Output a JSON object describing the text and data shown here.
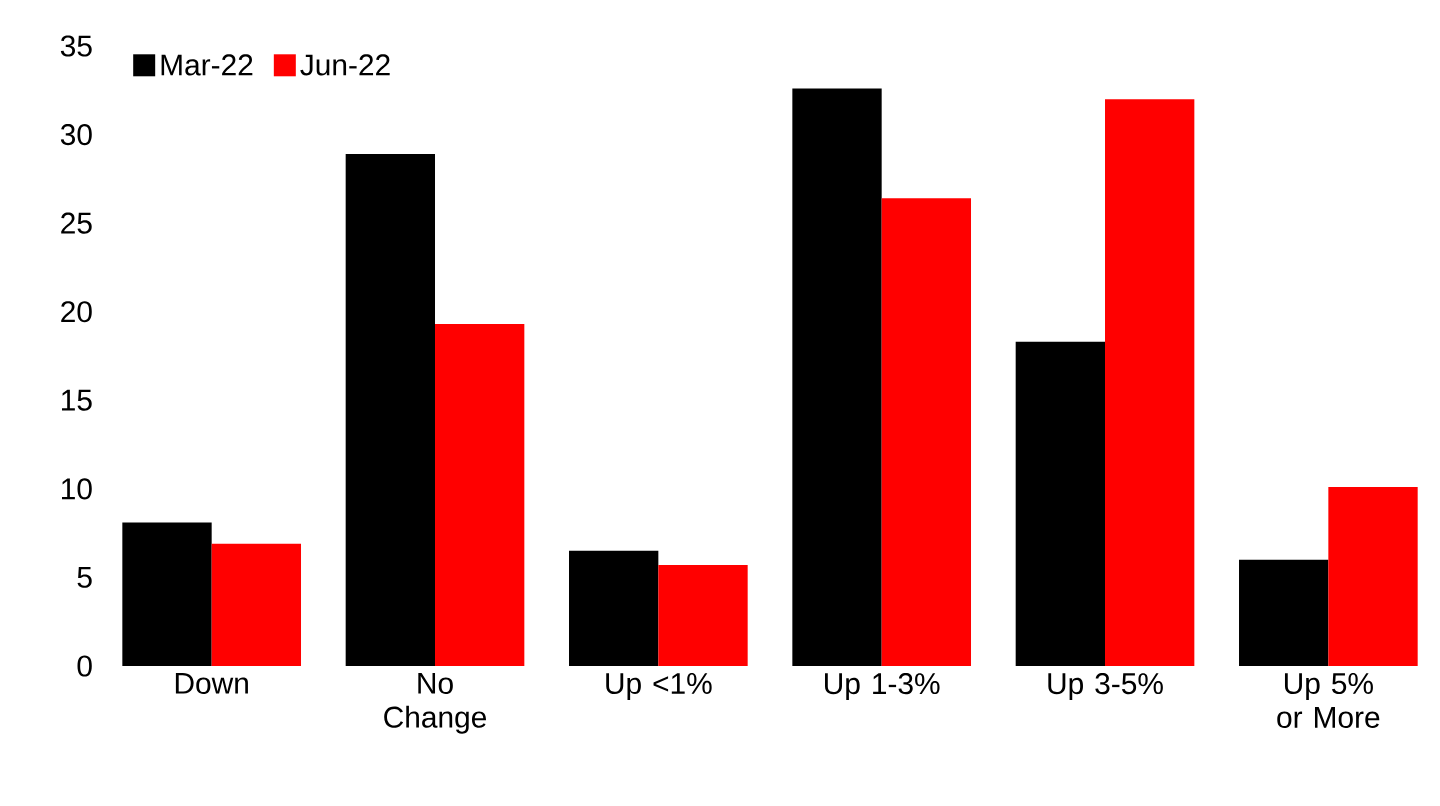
{
  "chart_data": {
    "type": "bar",
    "categories": [
      "Down",
      "No Change",
      "Up <1%",
      "Up 1-3%",
      "Up 3-5%",
      "Up 5% or More"
    ],
    "series": [
      {
        "name": "Mar-22",
        "color": "#000000",
        "values": [
          8.1,
          28.9,
          6.5,
          32.6,
          18.3,
          6.0
        ]
      },
      {
        "name": "Jun-22",
        "color": "#ff0000",
        "values": [
          6.9,
          19.3,
          5.7,
          26.4,
          32.0,
          10.1
        ]
      }
    ],
    "ylim": [
      0,
      35
    ],
    "yticks": [
      0,
      5,
      10,
      15,
      20,
      25,
      30,
      35
    ],
    "legend": "top left",
    "grid": false
  }
}
